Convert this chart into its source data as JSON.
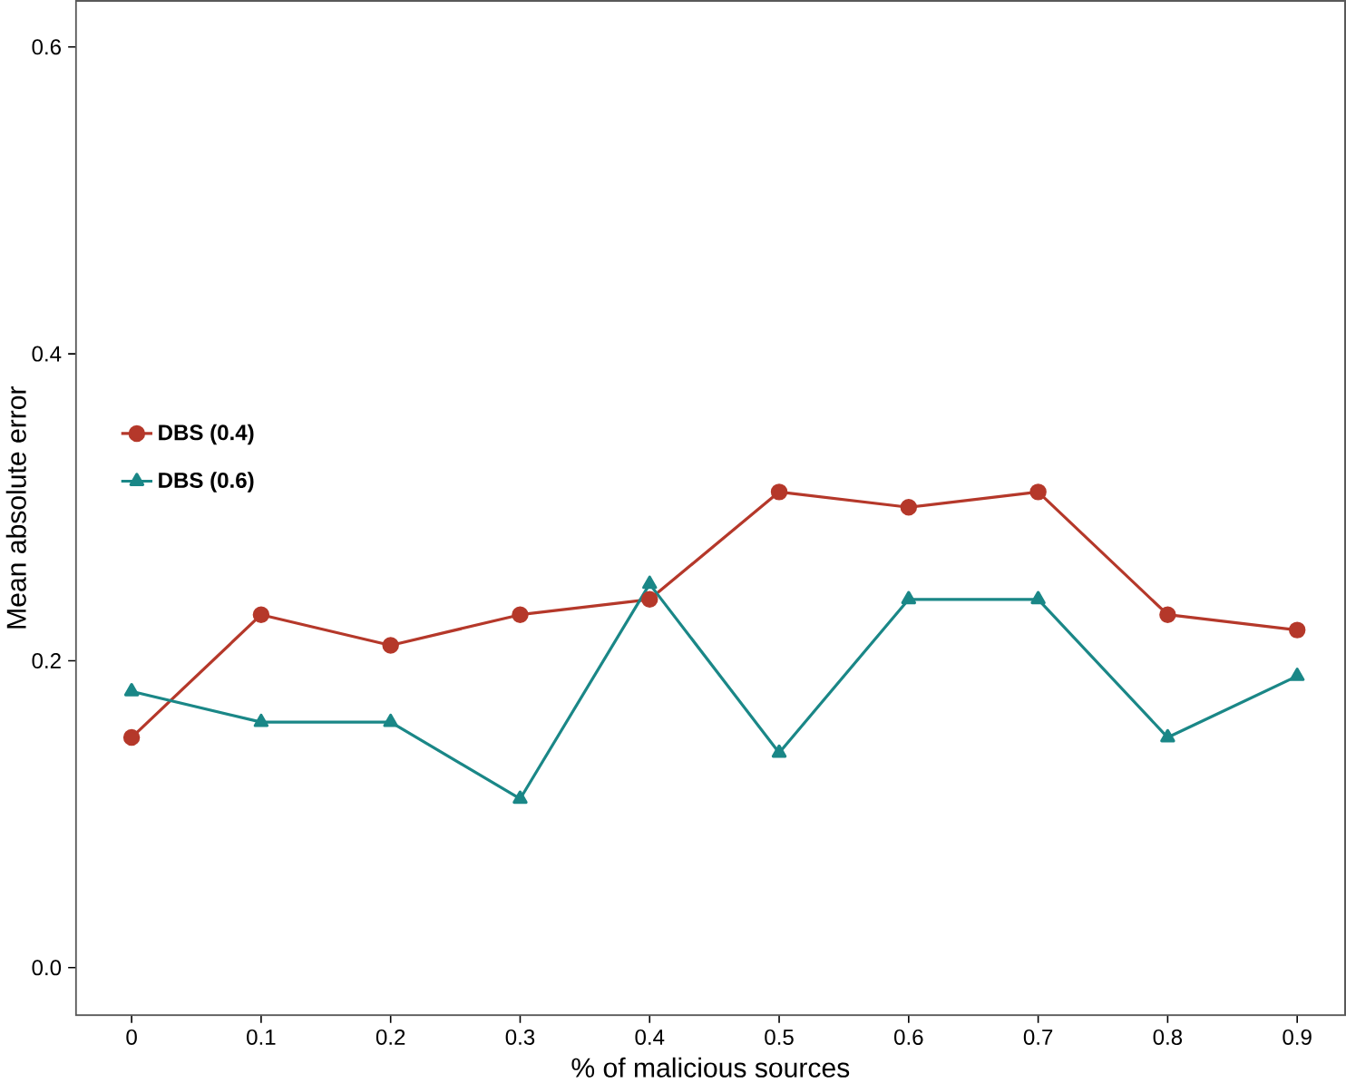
{
  "chart_data": {
    "type": "line",
    "xlabel": "% of malicious sources",
    "ylabel": "Mean absolute error",
    "x": [
      0,
      0.1,
      0.2,
      0.3,
      0.4,
      0.5,
      0.6,
      0.7,
      0.8,
      0.9
    ],
    "series": [
      {
        "name": "DBS (0.4)",
        "color": "#b5382a",
        "marker": "circle",
        "values": [
          0.15,
          0.23,
          0.21,
          0.23,
          0.24,
          0.31,
          0.3,
          0.31,
          0.23,
          0.22
        ]
      },
      {
        "name": "DBS (0.6)",
        "color": "#1a8787",
        "marker": "triangle",
        "values": [
          0.18,
          0.16,
          0.16,
          0.11,
          0.25,
          0.14,
          0.24,
          0.24,
          0.15,
          0.19
        ]
      }
    ],
    "xlim": [
      -0.043,
      0.937
    ],
    "ylim": [
      -0.031,
      0.63
    ],
    "xticks": [
      0,
      0.1,
      0.2,
      0.3,
      0.4,
      0.5,
      0.6,
      0.7,
      0.8,
      0.9
    ],
    "yticks": [
      {
        "value": 0,
        "label": "0.0"
      },
      {
        "value": 0.2,
        "label": "0.2"
      },
      {
        "value": 0.4,
        "label": "0.4"
      },
      {
        "value": 0.6,
        "label": "0.6"
      }
    ],
    "legend": "left",
    "grid": false,
    "line_style": "solid"
  }
}
